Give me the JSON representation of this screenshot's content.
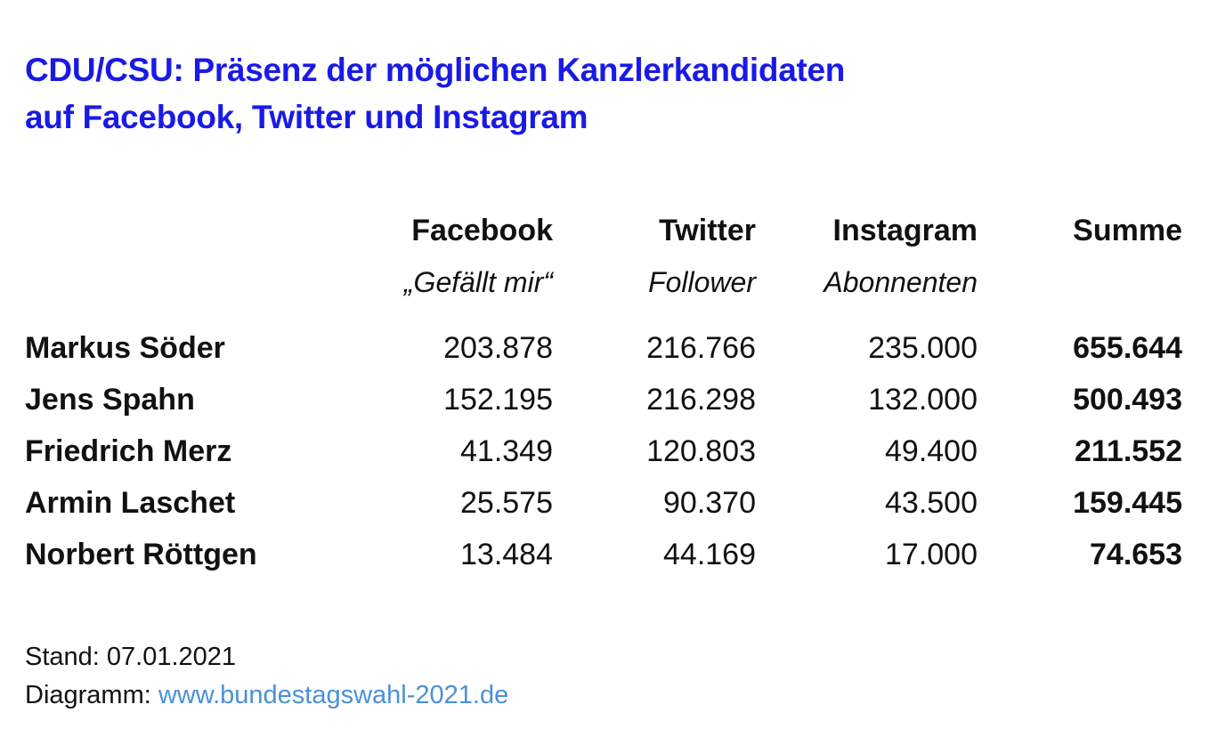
{
  "title_lines": [
    "CDU/CSU: Präsenz der möglichen Kanzlerkandidaten",
    "auf Facebook, Twitter und Instagram"
  ],
  "chart_data": {
    "type": "table",
    "columns": [
      {
        "label": "Facebook",
        "sublabel": "„Gefällt mir“"
      },
      {
        "label": "Twitter",
        "sublabel": "Follower"
      },
      {
        "label": "Instagram",
        "sublabel": "Abonnenten"
      },
      {
        "label": "Summe",
        "sublabel": ""
      }
    ],
    "rows": [
      {
        "name": "Markus Söder",
        "values": [
          "203.878",
          "216.766",
          "235.000",
          "655.644"
        ]
      },
      {
        "name": "Jens Spahn",
        "values": [
          "152.195",
          "216.298",
          "132.000",
          "500.493"
        ]
      },
      {
        "name": "Friedrich Merz",
        "values": [
          "41.349",
          "120.803",
          "49.400",
          "211.552"
        ]
      },
      {
        "name": "Armin Laschet",
        "values": [
          "25.575",
          "90.370",
          "43.500",
          "159.445"
        ]
      },
      {
        "name": "Norbert Röttgen",
        "values": [
          "13.484",
          "44.169",
          "17.000",
          "74.653"
        ]
      }
    ]
  },
  "footer": {
    "stand": "Stand: 07.01.2021",
    "diagramm_label": "Diagramm: ",
    "diagramm_link": "www.bundestagswahl-2021.de"
  },
  "colors": {
    "title": "#1a1ae6",
    "link": "#4a90d9",
    "text": "#111111"
  }
}
